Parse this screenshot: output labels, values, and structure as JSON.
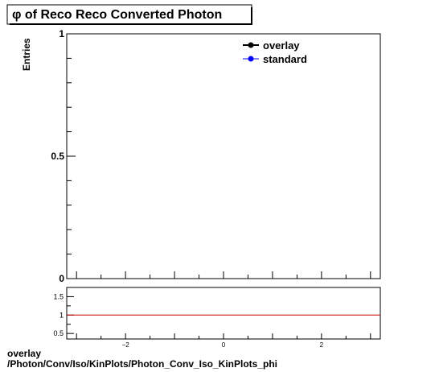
{
  "title": "φ of Reco Reco Converted Photon",
  "footer": {
    "line1": "overlay",
    "line2": "/Photon/Conv/Iso/KinPlots/Photon_Conv_Iso_KinPlots_phi"
  },
  "colors": {
    "overlay": "#000000",
    "standard": "#0000ff",
    "ratio_line": "#cc0000"
  },
  "chart_data": [
    {
      "type": "line",
      "ylabel": "Entries",
      "xlim": [
        -3.2,
        3.2
      ],
      "ylim": [
        0,
        1
      ],
      "y_ticks": [
        {
          "value": 0,
          "label": "0"
        },
        {
          "value": 0.5,
          "label": "0.5"
        },
        {
          "value": 1,
          "label": "1"
        }
      ],
      "legend": "top-right",
      "series": [
        {
          "name": "overlay",
          "values": []
        },
        {
          "name": "standard",
          "values": []
        }
      ]
    },
    {
      "type": "line",
      "xlim": [
        -3.2,
        3.2
      ],
      "ylim": [
        0.35,
        1.75
      ],
      "x_ticks": [
        {
          "value": -2,
          "label": "−2"
        },
        {
          "value": 0,
          "label": "0"
        },
        {
          "value": 2,
          "label": "2"
        }
      ],
      "y_ticks": [
        {
          "value": 0.5,
          "label": "0.5"
        },
        {
          "value": 1,
          "label": "1"
        },
        {
          "value": 1.5,
          "label": "1.5"
        }
      ],
      "reference_line": 1
    }
  ]
}
